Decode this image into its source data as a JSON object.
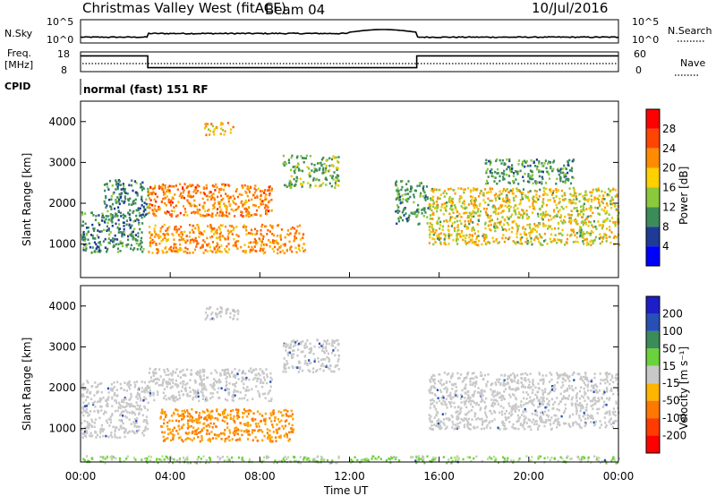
{
  "header": {
    "title": "Christmas Valley West (fitACF)",
    "beam": "Beam 04",
    "date": "10/Jul/2016"
  },
  "params": {
    "nsky_label": "N.Sky",
    "nsky_ticks": [
      "10^5",
      "10^0"
    ],
    "nsearch_label": "N.Search",
    "nsearch_ticks": [
      "10^5",
      "10^0"
    ],
    "freq_label_1": "Freq.",
    "freq_label_2": "[MHz]",
    "freq_ticks": [
      "18",
      "8"
    ],
    "nave_label": "Nave",
    "nave_ticks": [
      "60",
      "0"
    ],
    "cpid_label": "CPID",
    "cpid_value": "normal (fast) 151 RF"
  },
  "panels": {
    "ylabel": "Slant Range [km]",
    "yticks": [
      "4000",
      "3000",
      "2000",
      "1000"
    ],
    "xticks": [
      "00:00",
      "04:00",
      "08:00",
      "12:00",
      "16:00",
      "20:00",
      "00:00"
    ],
    "xlabel": "Time UT"
  },
  "power_colorbar": {
    "label": "Power [dB]",
    "ticks": [
      "28",
      "24",
      "20",
      "16",
      "12",
      "8",
      "4"
    ],
    "colors": [
      "#ff0000",
      "#ff4500",
      "#ff8c00",
      "#ffd000",
      "#8cc83c",
      "#3c8c5a",
      "#1e3c96",
      "#0000ff"
    ]
  },
  "velocity_colorbar": {
    "label": "Velocity [m s⁻¹]",
    "ticks": [
      "200",
      "100",
      "50",
      "15",
      "-15",
      "-50",
      "-100",
      "-200"
    ],
    "colors": [
      "#1e1ec8",
      "#2850b4",
      "#3c8c5a",
      "#6ad23c",
      "#c8c8c8",
      "#ffb400",
      "#ff7800",
      "#ff3c00",
      "#ff0000"
    ]
  },
  "chart_data": [
    {
      "type": "heatmap",
      "name": "power",
      "ylabel": "Slant Range [km]",
      "xlabel": "Time UT",
      "x_range_hours": [
        0,
        24
      ],
      "y_range_km": [
        180,
        4500
      ],
      "colorbar": "Power [dB]",
      "color_range": [
        0,
        30
      ],
      "regions": [
        {
          "t0": 0.0,
          "t1": 2.8,
          "r0": 800,
          "r1": 1800,
          "value": 9
        },
        {
          "t0": 1.0,
          "t1": 3.0,
          "r0": 1700,
          "r1": 2600,
          "value": 8
        },
        {
          "t0": 3.0,
          "t1": 8.5,
          "r0": 1700,
          "r1": 2500,
          "value": 22
        },
        {
          "t0": 3.0,
          "t1": 10.0,
          "r0": 800,
          "r1": 1500,
          "value": 21
        },
        {
          "t0": 5.5,
          "t1": 7.0,
          "r0": 3700,
          "r1": 4000,
          "value": 18
        },
        {
          "t0": 9.0,
          "t1": 11.5,
          "r0": 2400,
          "r1": 3200,
          "value": 12
        },
        {
          "t0": 14.0,
          "t1": 15.5,
          "r0": 1500,
          "r1": 2600,
          "value": 10
        },
        {
          "t0": 15.5,
          "t1": 24.0,
          "r0": 1000,
          "r1": 2400,
          "value": 16
        },
        {
          "t0": 18.0,
          "t1": 22.0,
          "r0": 2500,
          "r1": 3100,
          "value": 10
        }
      ]
    },
    {
      "type": "heatmap",
      "name": "velocity",
      "ylabel": "Slant Range [km]",
      "xlabel": "Time UT",
      "x_range_hours": [
        0,
        24
      ],
      "y_range_km": [
        180,
        4500
      ],
      "colorbar": "Velocity [m s-1]",
      "color_range": [
        -250,
        250
      ],
      "regions": [
        {
          "t0": 0.0,
          "t1": 3.0,
          "r0": 800,
          "r1": 2200,
          "value": 0
        },
        {
          "t0": 3.0,
          "t1": 8.5,
          "r0": 1700,
          "r1": 2500,
          "value": 0
        },
        {
          "t0": 3.5,
          "t1": 9.5,
          "r0": 700,
          "r1": 1500,
          "value": -60
        },
        {
          "t0": 5.5,
          "t1": 7.0,
          "r0": 3700,
          "r1": 4000,
          "value": 0
        },
        {
          "t0": 9.0,
          "t1": 11.5,
          "r0": 2400,
          "r1": 3200,
          "value": 0
        },
        {
          "t0": 15.5,
          "t1": 24.0,
          "r0": 1000,
          "r1": 2400,
          "value": 0
        },
        {
          "t0": 0.0,
          "t1": 24.0,
          "r0": 180,
          "r1": 350,
          "value": 30
        }
      ]
    },
    {
      "type": "line",
      "name": "freq",
      "x_hours": [
        0,
        3.0,
        3.0,
        15.0,
        15.0,
        24
      ],
      "y_mhz": [
        16,
        16,
        10,
        10,
        16,
        16
      ]
    }
  ]
}
